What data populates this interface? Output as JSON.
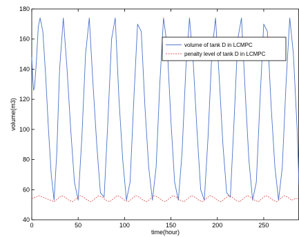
{
  "chart_data": {
    "type": "line",
    "xlabel": "time(hour)",
    "ylabel": "volume(m3)",
    "xlim": [
      0,
      288
    ],
    "ylim": [
      40,
      180
    ],
    "xticks": [
      0,
      50,
      100,
      150,
      200,
      250
    ],
    "yticks": [
      40,
      60,
      80,
      100,
      120,
      140,
      160,
      180
    ],
    "grid": false,
    "legend_position": "top-right",
    "series": [
      {
        "name": "volume of tank D in LCMPC",
        "color": "#4a72c9",
        "style": "solid",
        "x": [
          0,
          1,
          2,
          3,
          5,
          7,
          9,
          12,
          15,
          18,
          21,
          24,
          27,
          30,
          34,
          38,
          42,
          46,
          50,
          54,
          58,
          62,
          66,
          70,
          74,
          78,
          82,
          86,
          90,
          94,
          98,
          102,
          106,
          110,
          114,
          118,
          122,
          126,
          130,
          134,
          138,
          142,
          146,
          150,
          154,
          158,
          162,
          166,
          170,
          174,
          178,
          182,
          186,
          190,
          194,
          198,
          202,
          206,
          210,
          214,
          218,
          222,
          226,
          230,
          234,
          238,
          242,
          246,
          250,
          254,
          258,
          262,
          266,
          270,
          274,
          278,
          282,
          286,
          288
        ],
        "y": [
          148,
          135,
          126,
          128,
          145,
          168,
          174,
          165,
          135,
          100,
          70,
          53,
          85,
          140,
          174,
          140,
          100,
          65,
          53,
          95,
          150,
          174,
          130,
          90,
          58,
          55,
          105,
          160,
          174,
          120,
          80,
          53,
          65,
          120,
          170,
          165,
          115,
          75,
          53,
          75,
          130,
          174,
          155,
          105,
          65,
          53,
          85,
          140,
          174,
          145,
          100,
          60,
          53,
          95,
          150,
          174,
          135,
          90,
          58,
          55,
          105,
          160,
          174,
          125,
          80,
          53,
          65,
          120,
          170,
          165,
          115,
          75,
          53,
          75,
          130,
          174,
          150,
          100,
          63
        ]
      },
      {
        "name": "penalty level of tank D in LCMPC",
        "color": "#e05a5a",
        "style": "dashed",
        "x": [
          0,
          4,
          8,
          12,
          16,
          20,
          24,
          28,
          32,
          36,
          40,
          44,
          48,
          52,
          56,
          60,
          64,
          68,
          72,
          76,
          80,
          84,
          88,
          92,
          96,
          100,
          104,
          108,
          112,
          116,
          120,
          124,
          128,
          132,
          136,
          140,
          144,
          148,
          152,
          156,
          160,
          164,
          168,
          172,
          176,
          180,
          184,
          188,
          192,
          196,
          200,
          204,
          208,
          212,
          216,
          220,
          224,
          228,
          232,
          236,
          240,
          244,
          248,
          252,
          256,
          260,
          264,
          268,
          272,
          276,
          280,
          284,
          288
        ],
        "y": [
          54,
          55,
          56,
          55,
          54,
          53,
          52,
          54,
          56,
          55,
          53,
          52,
          54,
          56,
          55,
          53,
          52,
          54,
          56,
          55,
          53,
          52,
          54,
          56,
          55,
          53,
          52,
          54,
          56,
          55,
          53,
          52,
          54,
          56,
          55,
          53,
          52,
          54,
          56,
          55,
          53,
          52,
          54,
          56,
          55,
          53,
          52,
          54,
          56,
          55,
          53,
          52,
          54,
          56,
          55,
          53,
          52,
          54,
          56,
          55,
          53,
          52,
          54,
          56,
          55,
          53,
          52,
          54,
          56,
          55,
          53,
          54,
          54
        ]
      }
    ]
  }
}
